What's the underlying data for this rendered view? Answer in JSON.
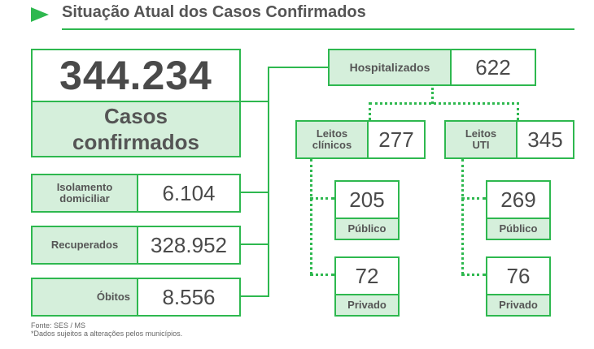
{
  "header": {
    "title": "Situação Atual dos Casos Confirmados"
  },
  "confirmed": {
    "value": "344.234",
    "label_line1": "Casos",
    "label_line2": "confirmados"
  },
  "left_items": [
    {
      "label_line1": "Isolamento",
      "label_line2": "domiciliar",
      "value": "6.104"
    },
    {
      "label_line1": "Recuperados",
      "label_line2": "",
      "value": "328.952"
    },
    {
      "label_line1": "Óbitos",
      "label_line2": "",
      "value": "8.556"
    }
  ],
  "hospitalized": {
    "label": "Hospitalizados",
    "value": "622"
  },
  "clinical": {
    "label_line1": "Leitos",
    "label_line2": "clínicos",
    "value": "277",
    "public": {
      "value": "205",
      "label": "Público"
    },
    "private": {
      "value": "72",
      "label": "Privado"
    }
  },
  "icu": {
    "label_line1": "Leitos",
    "label_line2": "UTI",
    "value": "345",
    "public": {
      "value": "269",
      "label": "Público"
    },
    "private": {
      "value": "76",
      "label": "Privado"
    }
  },
  "footer": {
    "source": "Fonte: SES / MS",
    "note": "*Dados sujeitos a alterações pelos municípios."
  },
  "colors": {
    "accent": "#2eb84f",
    "label_fill": "#d5efdb",
    "text": "#4a4a4a"
  }
}
